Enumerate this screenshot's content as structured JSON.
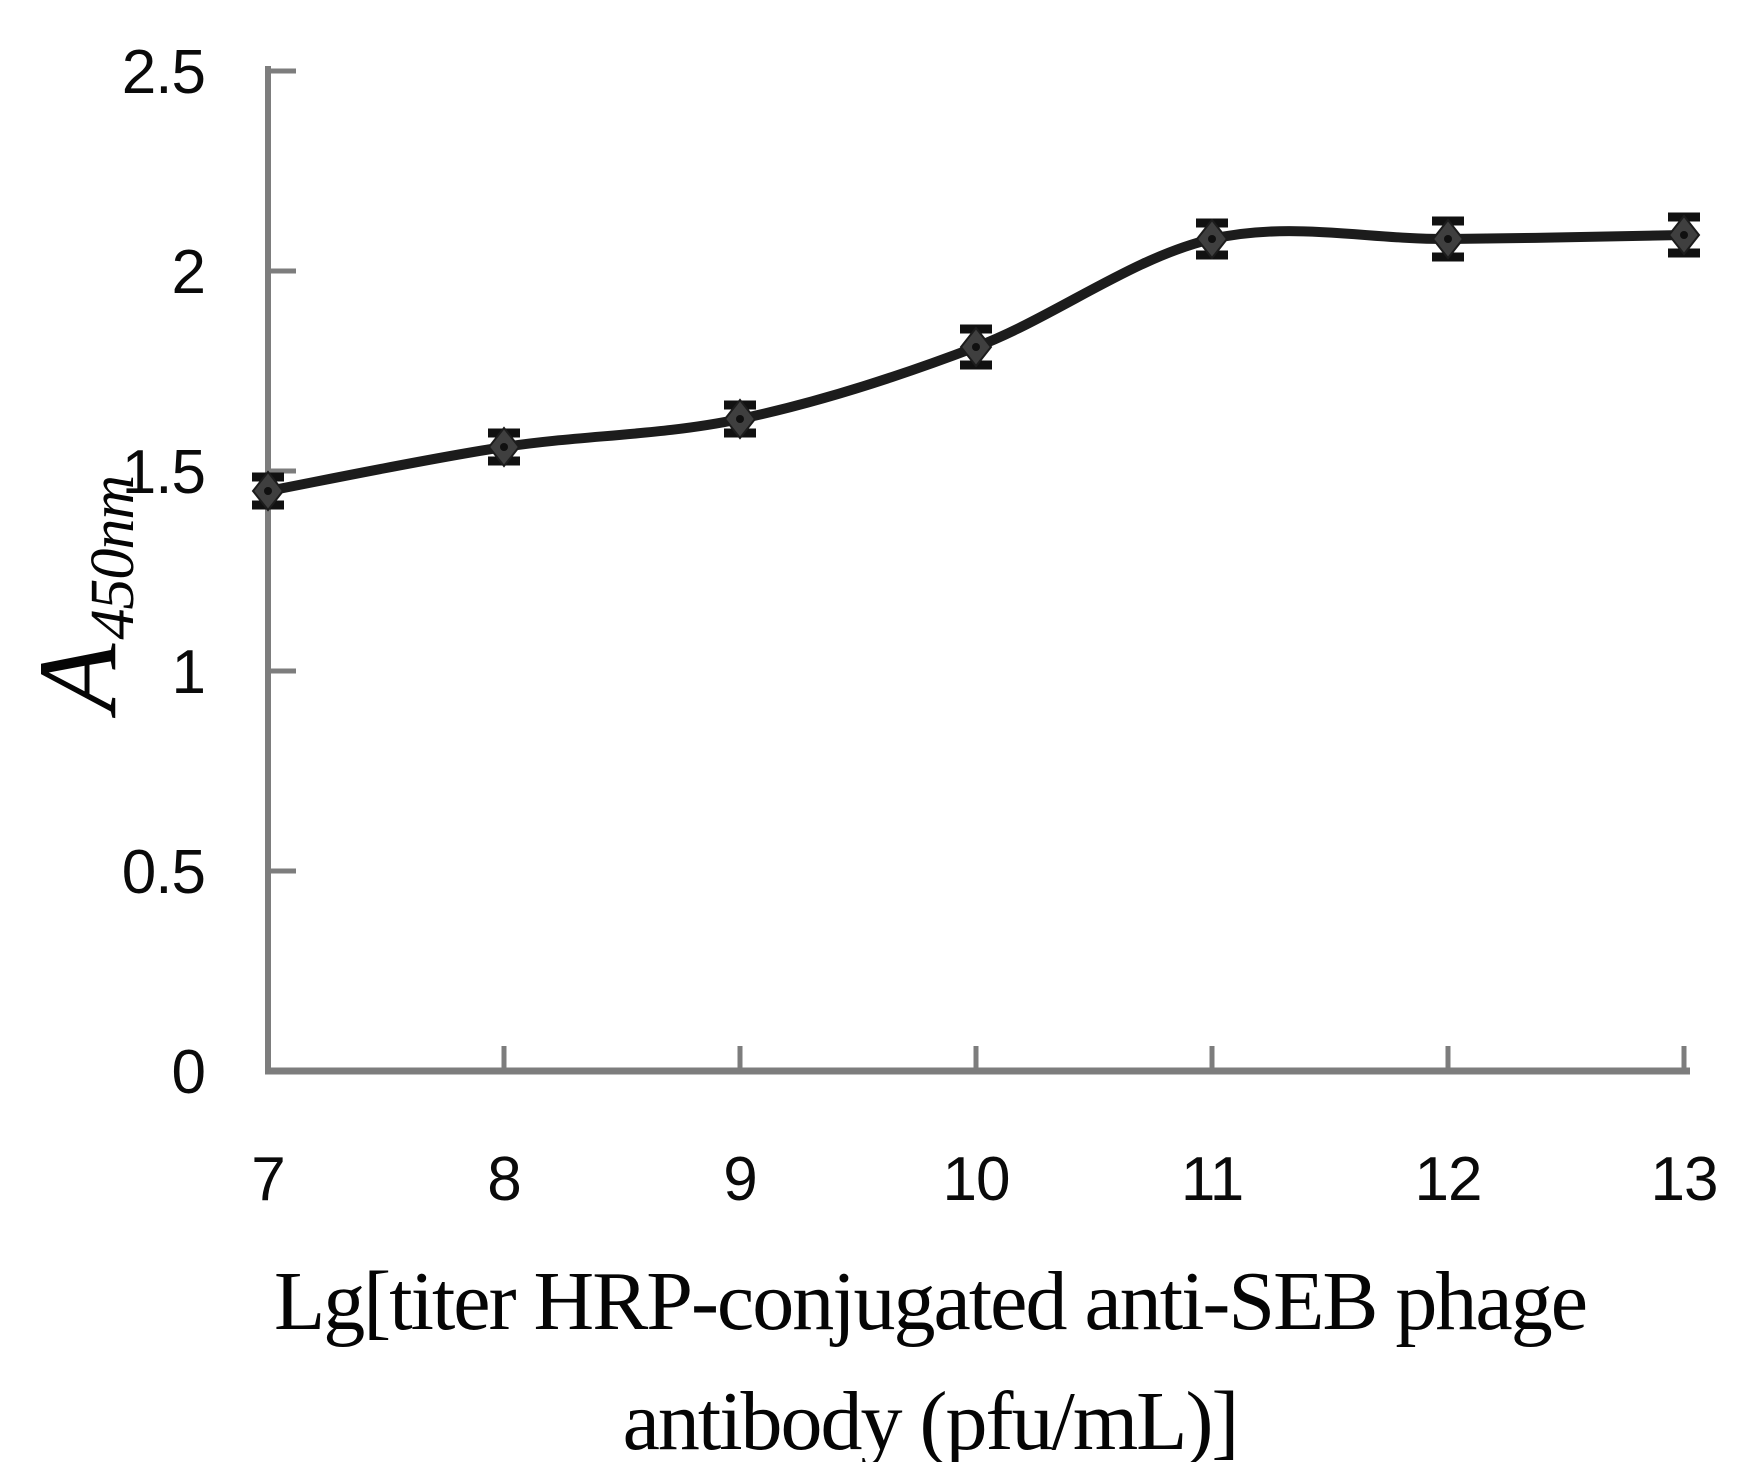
{
  "figure": {
    "background": "#ffffff"
  },
  "axes": {
    "x": {
      "title_lines": [
        "Lg[titer HRP-conjugated anti-SEB phage",
        "antibody (pfu/mL)]"
      ],
      "tick_labels": [
        "7",
        "8",
        "9",
        "10",
        "11",
        "12",
        "13"
      ],
      "tick_values": [
        7,
        8,
        9,
        10,
        11,
        12,
        13
      ],
      "range": [
        7,
        13
      ]
    },
    "y": {
      "label_main": "A",
      "label_subscript": "450nm",
      "tick_labels": [
        "0",
        "0.5",
        "1",
        "1.5",
        "2",
        "2.5"
      ],
      "tick_values": [
        0,
        0.5,
        1,
        1.5,
        2,
        2.5
      ],
      "range": [
        0,
        2.5
      ]
    }
  },
  "chart_data": {
    "type": "line",
    "x": [
      7,
      8,
      9,
      10,
      11,
      12,
      13
    ],
    "series": [
      {
        "name": "A450nm",
        "values": [
          1.45,
          1.56,
          1.63,
          1.81,
          2.08,
          2.08,
          2.09
        ],
        "errors": [
          0.035,
          0.035,
          0.035,
          0.045,
          0.04,
          0.045,
          0.045
        ]
      }
    ],
    "title": "",
    "xlabel": "Lg[titer HRP-conjugated anti-SEB phage antibody (pfu/mL)]",
    "ylabel": "A450nm",
    "xlim": [
      7,
      13
    ],
    "ylim": [
      0,
      2.5
    ],
    "grid": false,
    "legend": false,
    "marker": "diamond",
    "error_bars": true,
    "curve": "smooth"
  },
  "colors": {
    "axis": "#7d7d7d",
    "curve": "#1c1c1c",
    "marker_fill": "#3f3f3f",
    "marker_core": "#101010",
    "error_bar": "#111111",
    "text": "#0a0a0a"
  }
}
